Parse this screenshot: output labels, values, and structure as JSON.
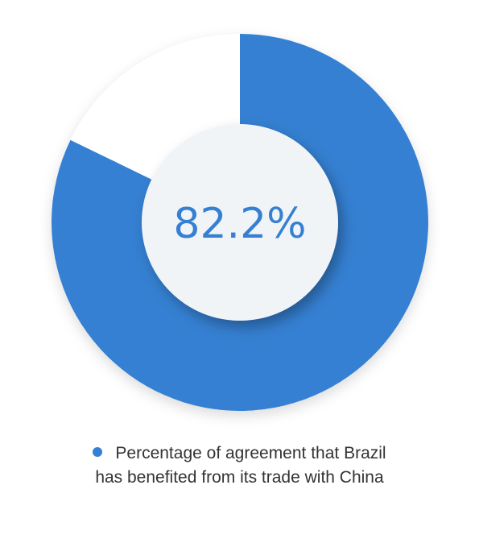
{
  "chart_data": {
    "type": "pie",
    "subtype": "donut",
    "series": [
      {
        "name": "Percentage of agreement that Brazil has benefited from its trade with China",
        "value": 82.2
      },
      {
        "value": 17.8
      }
    ],
    "center_label": "82.2%",
    "legend": {
      "placement": "bottom",
      "entries": [
        {
          "line1": "Percentage of agreement that Brazil",
          "line2": "has benefited from its trade with China"
        }
      ]
    }
  },
  "colors": {
    "primary": "#3580d2",
    "remainder": "#ffffff",
    "center": "#f1f4f7",
    "label": "#3580d2",
    "legend_text": "#333333"
  }
}
